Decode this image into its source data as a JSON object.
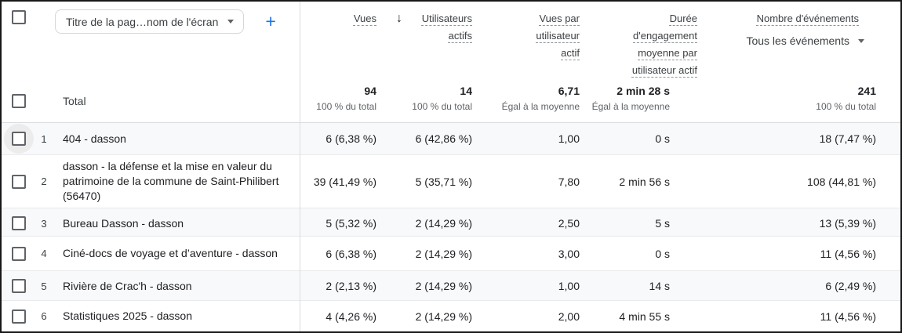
{
  "colors": {
    "accent_blue": "#1a73e8",
    "alt_row_bg": "#f8f9fa",
    "divider": "#dadce0",
    "secondary_text": "#5f6368"
  },
  "header": {
    "dimension_selector": {
      "label": "Titre de la pag…nom de l'écran"
    },
    "add_button_label": "+",
    "sort_icon": "↓",
    "columns": [
      {
        "label": "Vues"
      },
      {
        "label": "Utilisateurs actifs",
        "sort": "descending"
      },
      {
        "label": "Vues par utilisateur actif"
      },
      {
        "label": "Durée d'engagement moyenne par utilisateur actif"
      },
      {
        "label": "Nombre d'événements",
        "event_filter": "Tous les événements"
      }
    ]
  },
  "totals": {
    "label": "Total",
    "cells": [
      {
        "value": "94",
        "note": "100 % du total"
      },
      {
        "value": "14",
        "note": "100 % du total"
      },
      {
        "value": "6,71",
        "note": "Égal à la moyenne"
      },
      {
        "value": "2 min 28 s",
        "note": "Égal à la moyenne"
      },
      {
        "value": "241",
        "note": "100 % du total"
      }
    ]
  },
  "rows": [
    {
      "index": "1",
      "title": "404 - dasson",
      "hovered": true,
      "values": [
        "6 (6,38 %)",
        "6 (42,86 %)",
        "1,00",
        "0 s",
        "18 (7,47 %)"
      ]
    },
    {
      "index": "2",
      "title": "dasson - la défense et la mise en valeur du patrimoine de la commune de Saint-Philibert (56470)",
      "hovered": false,
      "values": [
        "39 (41,49 %)",
        "5 (35,71 %)",
        "7,80",
        "2 min 56 s",
        "108 (44,81 %)"
      ]
    },
    {
      "index": "3",
      "title": "Bureau Dasson - dasson",
      "hovered": false,
      "values": [
        "5 (5,32 %)",
        "2 (14,29 %)",
        "2,50",
        "5 s",
        "13 (5,39 %)"
      ]
    },
    {
      "index": "4",
      "title": "Ciné-docs de voyage et d’aventure - dasson",
      "hovered": false,
      "values": [
        "6 (6,38 %)",
        "2 (14,29 %)",
        "3,00",
        "0 s",
        "11 (4,56 %)"
      ]
    },
    {
      "index": "5",
      "title": "Rivière de Crac'h - dasson",
      "hovered": false,
      "values": [
        "2 (2,13 %)",
        "2 (14,29 %)",
        "1,00",
        "14 s",
        "6 (2,49 %)"
      ]
    },
    {
      "index": "6",
      "title": "Statistiques 2025 - dasson",
      "hovered": false,
      "values": [
        "4 (4,26 %)",
        "2 (14,29 %)",
        "2,00",
        "4 min 55 s",
        "11 (4,56 %)"
      ]
    }
  ]
}
